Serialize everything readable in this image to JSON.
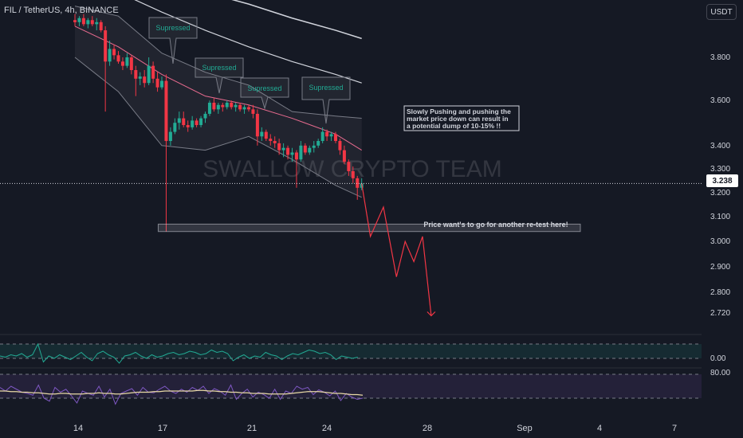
{
  "header": {
    "title": "FIL / TetherUS, 4h, BINANCE",
    "currency_button": "USDT",
    "last_price": "3.238"
  },
  "watermark": "SWALLOW CRYPTO TEAM",
  "annotations": {
    "suppressed": [
      "Supressed",
      "Supressed",
      "Supressed",
      "Supressed"
    ],
    "note": [
      "Slowly Pushing and pushing the",
      "market price down can result in",
      "a potential dump of 10-15% !!"
    ],
    "retest_zone": "Price want's to go for another re-test here!"
  },
  "colors": {
    "background": "#151924",
    "up": "#22ab94",
    "down": "#f23645",
    "bands": "#787b86",
    "ma_white": "#d1d4dc",
    "ma_pink": "#e86b8f",
    "projection": "#f23645",
    "teal_indicator": "#22ab94",
    "purple_indicator": "#7e57c2",
    "text": "#d1d4dc"
  },
  "chart_data": {
    "type": "candlestick",
    "symbol": "FIL / TetherUS",
    "interval": "4h",
    "exchange": "BINANCE",
    "y_ticks": [
      "3.800",
      "3.600",
      "3.400",
      "3.300",
      "3.238",
      "3.200",
      "3.100",
      "3.000",
      "2.900",
      "2.800",
      "2.720"
    ],
    "x_ticks": [
      "14",
      "17",
      "21",
      "24",
      "28",
      "Sep",
      "4",
      "7"
    ],
    "candles": [
      {
        "t": "13T20",
        "o": 3.98,
        "h": 4.01,
        "l": 3.95,
        "c": 3.97
      },
      {
        "t": "14T00",
        "o": 3.97,
        "h": 4.0,
        "l": 3.95,
        "c": 3.99
      },
      {
        "t": "14T04",
        "o": 3.99,
        "h": 4.01,
        "l": 3.95,
        "c": 3.96
      },
      {
        "t": "14T08",
        "o": 3.96,
        "h": 3.99,
        "l": 3.94,
        "c": 3.98
      },
      {
        "t": "14T12",
        "o": 3.98,
        "h": 4.0,
        "l": 3.95,
        "c": 3.96
      },
      {
        "t": "14T16",
        "o": 3.96,
        "h": 3.99,
        "l": 3.93,
        "c": 3.97
      },
      {
        "t": "14T20",
        "o": 3.97,
        "h": 3.98,
        "l": 3.92,
        "c": 3.93
      },
      {
        "t": "15T00",
        "o": 3.93,
        "h": 3.95,
        "l": 3.55,
        "c": 3.78
      },
      {
        "t": "15T04",
        "o": 3.78,
        "h": 3.88,
        "l": 3.76,
        "c": 3.84
      },
      {
        "t": "15T08",
        "o": 3.84,
        "h": 3.86,
        "l": 3.79,
        "c": 3.81
      },
      {
        "t": "15T12",
        "o": 3.81,
        "h": 3.83,
        "l": 3.77,
        "c": 3.78
      },
      {
        "t": "15T16",
        "o": 3.78,
        "h": 3.8,
        "l": 3.74,
        "c": 3.76
      },
      {
        "t": "15T20",
        "o": 3.76,
        "h": 3.82,
        "l": 3.75,
        "c": 3.8
      },
      {
        "t": "16T00",
        "o": 3.8,
        "h": 3.81,
        "l": 3.72,
        "c": 3.74
      },
      {
        "t": "16T04",
        "o": 3.74,
        "h": 3.76,
        "l": 3.62,
        "c": 3.7
      },
      {
        "t": "16T08",
        "o": 3.7,
        "h": 3.73,
        "l": 3.67,
        "c": 3.71
      },
      {
        "t": "16T12",
        "o": 3.71,
        "h": 3.74,
        "l": 3.66,
        "c": 3.68
      },
      {
        "t": "16T16",
        "o": 3.68,
        "h": 3.8,
        "l": 3.67,
        "c": 3.76
      },
      {
        "t": "16T20",
        "o": 3.76,
        "h": 3.78,
        "l": 3.68,
        "c": 3.7
      },
      {
        "t": "17T00",
        "o": 3.7,
        "h": 3.73,
        "l": 3.64,
        "c": 3.66
      },
      {
        "t": "17T04",
        "o": 3.66,
        "h": 3.71,
        "l": 3.65,
        "c": 3.69
      },
      {
        "t": "17T08",
        "o": 3.69,
        "h": 3.72,
        "l": 3.04,
        "c": 3.42
      },
      {
        "t": "17T12",
        "o": 3.42,
        "h": 3.48,
        "l": 3.4,
        "c": 3.46
      },
      {
        "t": "17T16",
        "o": 3.46,
        "h": 3.52,
        "l": 3.45,
        "c": 3.5
      },
      {
        "t": "17T20",
        "o": 3.5,
        "h": 3.55,
        "l": 3.47,
        "c": 3.52
      },
      {
        "t": "18T00",
        "o": 3.52,
        "h": 3.55,
        "l": 3.48,
        "c": 3.49
      },
      {
        "t": "18T04",
        "o": 3.49,
        "h": 3.51,
        "l": 3.46,
        "c": 3.48
      },
      {
        "t": "18T08",
        "o": 3.48,
        "h": 3.53,
        "l": 3.47,
        "c": 3.51
      },
      {
        "t": "18T12",
        "o": 3.51,
        "h": 3.52,
        "l": 3.48,
        "c": 3.49
      },
      {
        "t": "18T16",
        "o": 3.49,
        "h": 3.53,
        "l": 3.48,
        "c": 3.52
      },
      {
        "t": "18T20",
        "o": 3.52,
        "h": 3.55,
        "l": 3.5,
        "c": 3.54
      },
      {
        "t": "19T00",
        "o": 3.54,
        "h": 3.6,
        "l": 3.53,
        "c": 3.59
      },
      {
        "t": "19T04",
        "o": 3.59,
        "h": 3.61,
        "l": 3.55,
        "c": 3.56
      },
      {
        "t": "19T08",
        "o": 3.56,
        "h": 3.59,
        "l": 3.54,
        "c": 3.58
      },
      {
        "t": "19T12",
        "o": 3.58,
        "h": 3.59,
        "l": 3.55,
        "c": 3.57
      },
      {
        "t": "19T16",
        "o": 3.57,
        "h": 3.6,
        "l": 3.56,
        "c": 3.59
      },
      {
        "t": "19T20",
        "o": 3.59,
        "h": 3.6,
        "l": 3.56,
        "c": 3.57
      },
      {
        "t": "20T00",
        "o": 3.57,
        "h": 3.59,
        "l": 3.55,
        "c": 3.58
      },
      {
        "t": "20T04",
        "o": 3.58,
        "h": 3.59,
        "l": 3.55,
        "c": 3.56
      },
      {
        "t": "20T08",
        "o": 3.56,
        "h": 3.58,
        "l": 3.54,
        "c": 3.57
      },
      {
        "t": "20T12",
        "o": 3.57,
        "h": 3.58,
        "l": 3.55,
        "c": 3.56
      },
      {
        "t": "20T16",
        "o": 3.56,
        "h": 3.58,
        "l": 3.52,
        "c": 3.54
      },
      {
        "t": "20T20",
        "o": 3.54,
        "h": 3.56,
        "l": 3.4,
        "c": 3.44
      },
      {
        "t": "21T00",
        "o": 3.44,
        "h": 3.48,
        "l": 3.42,
        "c": 3.46
      },
      {
        "t": "21T04",
        "o": 3.46,
        "h": 3.47,
        "l": 3.42,
        "c": 3.43
      },
      {
        "t": "21T08",
        "o": 3.43,
        "h": 3.45,
        "l": 3.4,
        "c": 3.42
      },
      {
        "t": "21T12",
        "o": 3.42,
        "h": 3.44,
        "l": 3.39,
        "c": 3.41
      },
      {
        "t": "21T16",
        "o": 3.41,
        "h": 3.43,
        "l": 3.36,
        "c": 3.38
      },
      {
        "t": "21T20",
        "o": 3.38,
        "h": 3.41,
        "l": 3.35,
        "c": 3.39
      },
      {
        "t": "22T00",
        "o": 3.39,
        "h": 3.4,
        "l": 3.34,
        "c": 3.36
      },
      {
        "t": "22T04",
        "o": 3.36,
        "h": 3.39,
        "l": 3.33,
        "c": 3.37
      },
      {
        "t": "22T08",
        "o": 3.37,
        "h": 3.38,
        "l": 3.22,
        "c": 3.34
      },
      {
        "t": "22T12",
        "o": 3.34,
        "h": 3.42,
        "l": 3.33,
        "c": 3.4
      },
      {
        "t": "22T16",
        "o": 3.4,
        "h": 3.41,
        "l": 3.36,
        "c": 3.37
      },
      {
        "t": "22T20",
        "o": 3.37,
        "h": 3.4,
        "l": 3.36,
        "c": 3.39
      },
      {
        "t": "23T00",
        "o": 3.39,
        "h": 3.42,
        "l": 3.37,
        "c": 3.4
      },
      {
        "t": "23T04",
        "o": 3.4,
        "h": 3.43,
        "l": 3.39,
        "c": 3.42
      },
      {
        "t": "23T08",
        "o": 3.42,
        "h": 3.48,
        "l": 3.41,
        "c": 3.46
      },
      {
        "t": "23T12",
        "o": 3.46,
        "h": 3.47,
        "l": 3.42,
        "c": 3.44
      },
      {
        "t": "23T16",
        "o": 3.44,
        "h": 3.46,
        "l": 3.42,
        "c": 3.45
      },
      {
        "t": "23T20",
        "o": 3.45,
        "h": 3.46,
        "l": 3.41,
        "c": 3.42
      },
      {
        "t": "24T00",
        "o": 3.42,
        "h": 3.43,
        "l": 3.36,
        "c": 3.38
      },
      {
        "t": "24T04",
        "o": 3.38,
        "h": 3.4,
        "l": 3.32,
        "c": 3.33
      },
      {
        "t": "24T08",
        "o": 3.33,
        "h": 3.34,
        "l": 3.27,
        "c": 3.29
      },
      {
        "t": "24T12",
        "o": 3.29,
        "h": 3.31,
        "l": 3.24,
        "c": 3.26
      },
      {
        "t": "24T16",
        "o": 3.26,
        "h": 3.27,
        "l": 3.17,
        "c": 3.22
      },
      {
        "t": "24T20",
        "o": 3.22,
        "h": 3.26,
        "l": 3.21,
        "c": 3.238
      }
    ],
    "bollinger_upper": [
      [
        0,
        4.05
      ],
      [
        10,
        4.0
      ],
      [
        20,
        3.82
      ],
      [
        30,
        3.73
      ],
      [
        40,
        3.67
      ],
      [
        50,
        3.55
      ],
      [
        60,
        3.53
      ],
      [
        66,
        3.52
      ]
    ],
    "bollinger_lower": [
      [
        0,
        3.8
      ],
      [
        10,
        3.64
      ],
      [
        20,
        3.4
      ],
      [
        30,
        3.38
      ],
      [
        40,
        3.44
      ],
      [
        50,
        3.34
      ],
      [
        60,
        3.23
      ],
      [
        66,
        3.18
      ]
    ],
    "ma_pink": [
      [
        0,
        3.95
      ],
      [
        10,
        3.85
      ],
      [
        20,
        3.72
      ],
      [
        30,
        3.62
      ],
      [
        40,
        3.58
      ],
      [
        50,
        3.52
      ],
      [
        60,
        3.45
      ],
      [
        66,
        3.38
      ]
    ],
    "ma_white_upper": [
      [
        0,
        4.35
      ],
      [
        10,
        4.28
      ],
      [
        20,
        4.19
      ],
      [
        30,
        4.12
      ],
      [
        40,
        4.06
      ],
      [
        50,
        3.99
      ],
      [
        60,
        3.93
      ],
      [
        66,
        3.89
      ]
    ],
    "ma_white_lower": [
      [
        0,
        4.18
      ],
      [
        10,
        4.12
      ],
      [
        20,
        4.02
      ],
      [
        30,
        3.93
      ],
      [
        40,
        3.85
      ],
      [
        50,
        3.78
      ],
      [
        60,
        3.72
      ],
      [
        66,
        3.68
      ]
    ],
    "projection": [
      [
        66,
        3.238
      ],
      [
        68,
        3.02
      ],
      [
        71,
        3.14
      ],
      [
        74,
        2.86
      ],
      [
        76,
        3.0
      ],
      [
        78,
        2.92
      ],
      [
        80,
        3.02
      ],
      [
        82,
        2.71
      ]
    ],
    "retest_level": [
      3.04,
      3.07
    ],
    "teal_oscillator": [
      0.02,
      0.01,
      0.03,
      0.02,
      0.04,
      0.01,
      0.03,
      0.12,
      -0.03,
      0.02,
      0.0,
      0.03,
      0.01,
      -0.01,
      0.02,
      0.05,
      0.01,
      -0.02,
      0.04,
      0.06,
      0.03,
      0.01,
      -0.04,
      0.02,
      0.03,
      0.05,
      0.02,
      0.0,
      0.03,
      0.01,
      0.02,
      0.04,
      0.05,
      0.03,
      0.04,
      0.06,
      0.05,
      0.03,
      0.04,
      0.07,
      0.05,
      0.06,
      0.04,
      -0.02,
      0.01,
      0.03,
      0.0,
      0.02,
      0.01,
      0.05,
      0.03,
      0.02,
      -0.01,
      0.02,
      0.04,
      0.03,
      0.05,
      0.07,
      0.06,
      0.04,
      0.05,
      0.03,
      -0.01,
      0.02,
      0.01,
      0.0,
      0.01
    ],
    "purple_rsi": [
      58,
      52,
      60,
      55,
      50,
      48,
      45,
      62,
      40,
      35,
      58,
      50,
      55,
      44,
      32,
      52,
      48,
      45,
      60,
      42,
      55,
      30,
      48,
      52,
      56,
      45,
      58,
      50,
      49,
      55,
      60,
      52,
      48,
      55,
      50,
      58,
      53,
      60,
      48,
      56,
      52,
      45,
      62,
      38,
      48,
      55,
      42,
      50,
      46,
      40,
      55,
      38,
      52,
      48,
      60,
      55,
      58,
      46,
      54,
      50,
      44,
      52,
      36,
      48,
      42,
      38,
      40
    ],
    "purple_ma": [
      52,
      52,
      51,
      51,
      50,
      50,
      49,
      49,
      48,
      47,
      47,
      48,
      48,
      47,
      47,
      47,
      48,
      48,
      49,
      48,
      48,
      47,
      47,
      48,
      49,
      50,
      50,
      50,
      51,
      51,
      52,
      52,
      52,
      52,
      52,
      52,
      53,
      53,
      52,
      52,
      51,
      51,
      50,
      50,
      49,
      49,
      48,
      48,
      48,
      47,
      47,
      47,
      47,
      48,
      49,
      50,
      51,
      51,
      51,
      50,
      49,
      48,
      48,
      47,
      46,
      46,
      45
    ]
  }
}
